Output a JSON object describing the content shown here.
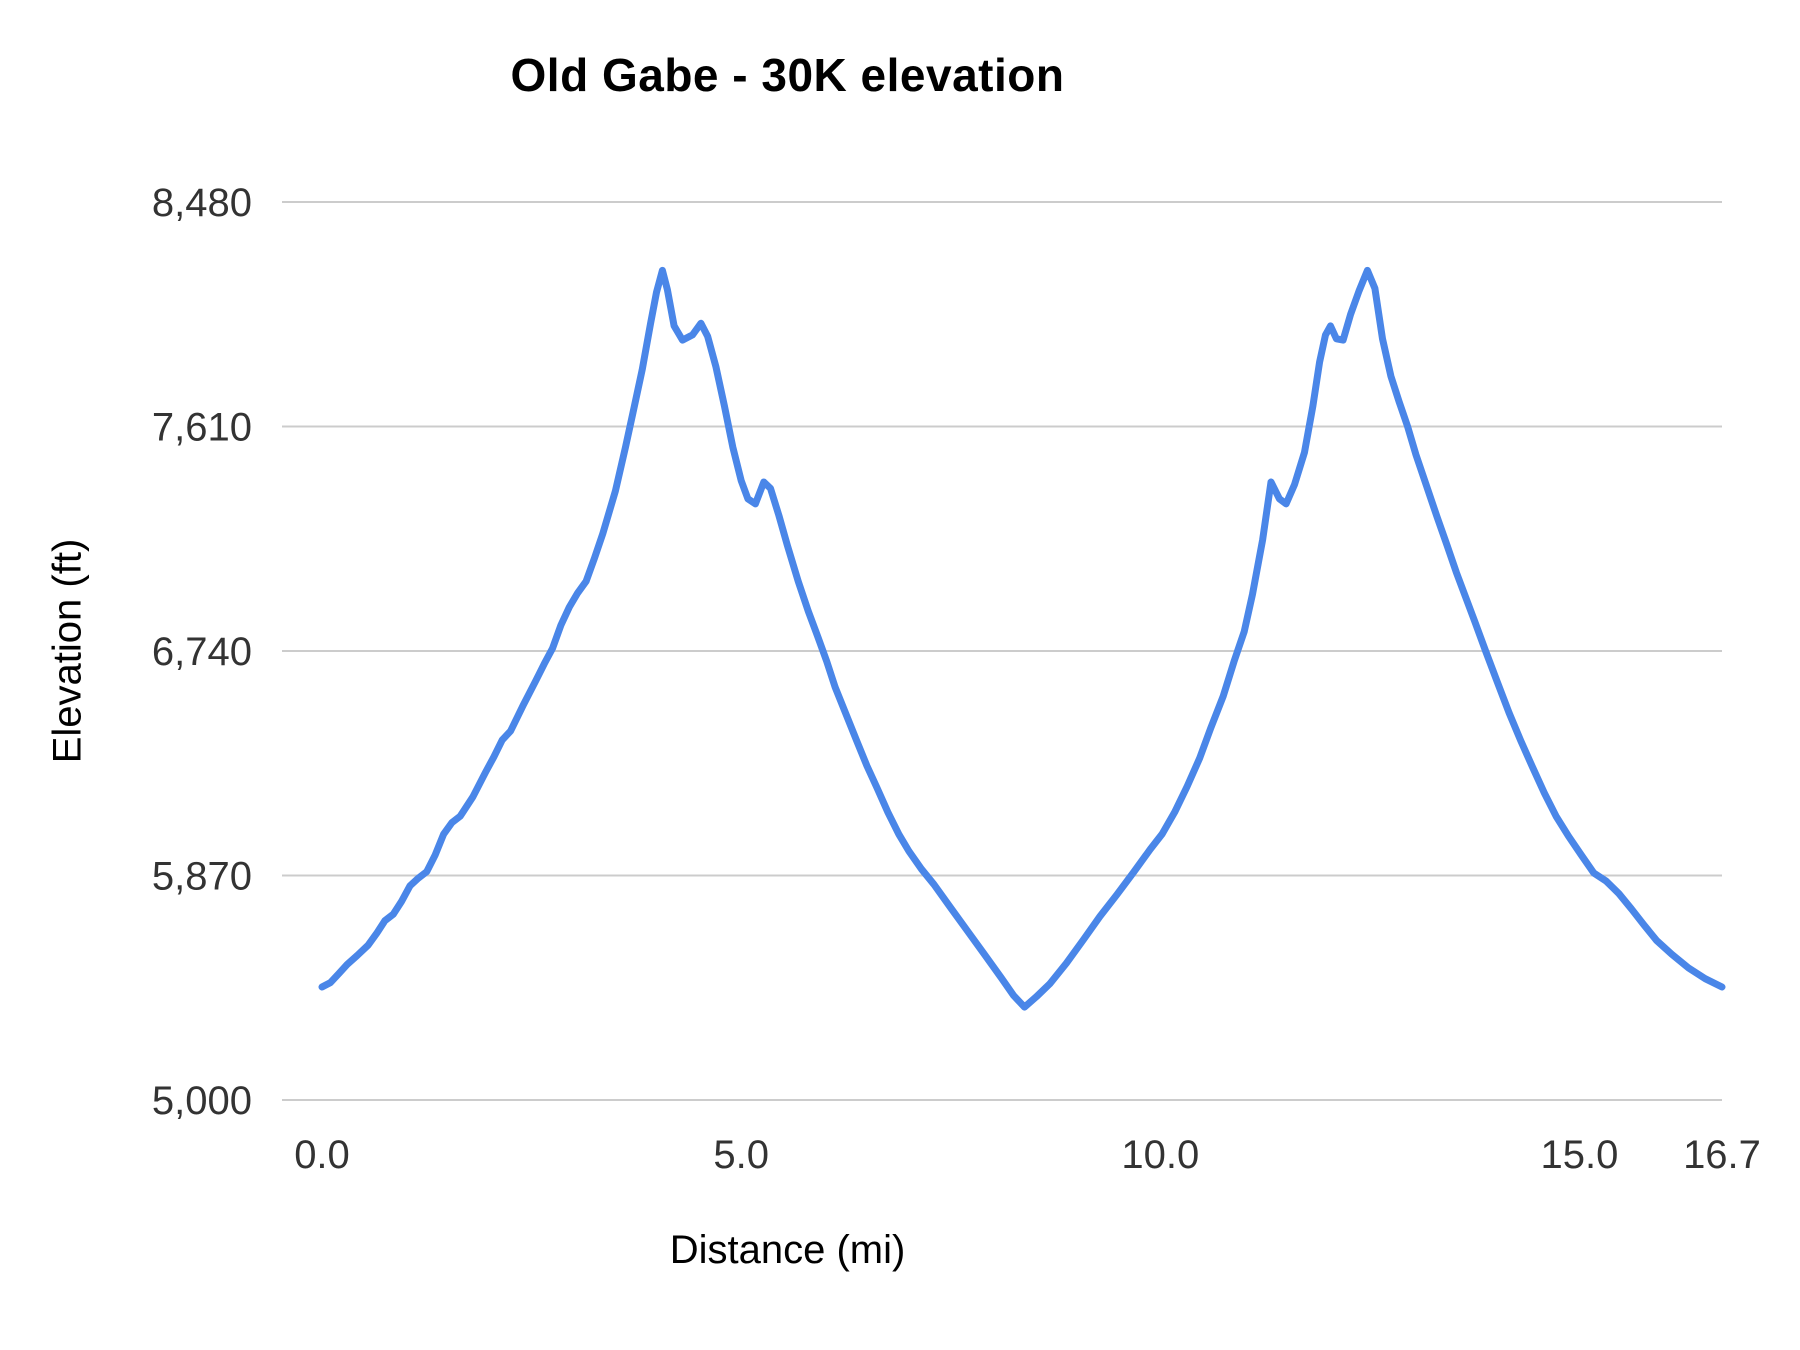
{
  "chart_data": {
    "type": "line",
    "title": "Old Gabe - 30K elevation",
    "xlabel": "Distance (mi)",
    "ylabel": "Elevation (ft)",
    "xlim": [
      0,
      16.7
    ],
    "ylim": [
      5000,
      8480
    ],
    "xticks": {
      "values": [
        0,
        5,
        10,
        15,
        16.7
      ],
      "labels": [
        "0.0",
        "5.0",
        "10.0",
        "15.0",
        "16.7"
      ]
    },
    "yticks": {
      "values": [
        5000,
        5870,
        6740,
        7610,
        8480
      ],
      "labels": [
        "5,000",
        "5,870",
        "6,740",
        "7,610",
        "8,480"
      ]
    },
    "grid_on": true,
    "legend": "none",
    "line_color": "#4a86e8",
    "grid_color": "#cccccc",
    "tick_label_color": "#333333",
    "line_width": 7,
    "points": [
      [
        0.0,
        5438
      ],
      [
        0.1,
        5455
      ],
      [
        0.2,
        5490
      ],
      [
        0.3,
        5525
      ],
      [
        0.42,
        5560
      ],
      [
        0.55,
        5600
      ],
      [
        0.65,
        5645
      ],
      [
        0.75,
        5695
      ],
      [
        0.85,
        5720
      ],
      [
        0.95,
        5770
      ],
      [
        1.05,
        5830
      ],
      [
        1.15,
        5860
      ],
      [
        1.25,
        5885
      ],
      [
        1.35,
        5950
      ],
      [
        1.45,
        6030
      ],
      [
        1.55,
        6075
      ],
      [
        1.65,
        6100
      ],
      [
        1.8,
        6175
      ],
      [
        1.95,
        6270
      ],
      [
        2.05,
        6330
      ],
      [
        2.15,
        6395
      ],
      [
        2.25,
        6430
      ],
      [
        2.4,
        6530
      ],
      [
        2.55,
        6625
      ],
      [
        2.65,
        6690
      ],
      [
        2.75,
        6750
      ],
      [
        2.85,
        6840
      ],
      [
        2.95,
        6910
      ],
      [
        3.05,
        6965
      ],
      [
        3.15,
        7010
      ],
      [
        3.25,
        7100
      ],
      [
        3.35,
        7195
      ],
      [
        3.5,
        7360
      ],
      [
        3.62,
        7530
      ],
      [
        3.72,
        7680
      ],
      [
        3.82,
        7830
      ],
      [
        3.92,
        8010
      ],
      [
        3.99,
        8130
      ],
      [
        4.06,
        8215
      ],
      [
        4.12,
        8140
      ],
      [
        4.2,
        8000
      ],
      [
        4.3,
        7945
      ],
      [
        4.42,
        7965
      ],
      [
        4.52,
        8010
      ],
      [
        4.6,
        7960
      ],
      [
        4.7,
        7840
      ],
      [
        4.8,
        7690
      ],
      [
        4.9,
        7530
      ],
      [
        5.0,
        7400
      ],
      [
        5.08,
        7330
      ],
      [
        5.17,
        7310
      ],
      [
        5.27,
        7395
      ],
      [
        5.35,
        7370
      ],
      [
        5.45,
        7265
      ],
      [
        5.55,
        7150
      ],
      [
        5.68,
        7010
      ],
      [
        5.8,
        6895
      ],
      [
        5.92,
        6790
      ],
      [
        6.02,
        6700
      ],
      [
        6.12,
        6600
      ],
      [
        6.25,
        6495
      ],
      [
        6.38,
        6390
      ],
      [
        6.5,
        6295
      ],
      [
        6.62,
        6210
      ],
      [
        6.75,
        6115
      ],
      [
        6.88,
        6030
      ],
      [
        7.0,
        5965
      ],
      [
        7.15,
        5895
      ],
      [
        7.3,
        5835
      ],
      [
        7.5,
        5745
      ],
      [
        7.7,
        5655
      ],
      [
        7.9,
        5565
      ],
      [
        8.1,
        5475
      ],
      [
        8.25,
        5405
      ],
      [
        8.38,
        5360
      ],
      [
        8.52,
        5400
      ],
      [
        8.68,
        5450
      ],
      [
        8.88,
        5530
      ],
      [
        9.08,
        5620
      ],
      [
        9.28,
        5712
      ],
      [
        9.48,
        5795
      ],
      [
        9.68,
        5882
      ],
      [
        9.88,
        5972
      ],
      [
        10.02,
        6030
      ],
      [
        10.17,
        6115
      ],
      [
        10.32,
        6215
      ],
      [
        10.47,
        6325
      ],
      [
        10.6,
        6440
      ],
      [
        10.75,
        6565
      ],
      [
        10.88,
        6700
      ],
      [
        11.0,
        6815
      ],
      [
        11.1,
        6960
      ],
      [
        11.22,
        7170
      ],
      [
        11.32,
        7395
      ],
      [
        11.42,
        7330
      ],
      [
        11.5,
        7310
      ],
      [
        11.6,
        7385
      ],
      [
        11.72,
        7510
      ],
      [
        11.82,
        7690
      ],
      [
        11.9,
        7860
      ],
      [
        11.97,
        7965
      ],
      [
        12.03,
        8000
      ],
      [
        12.1,
        7950
      ],
      [
        12.18,
        7945
      ],
      [
        12.27,
        8045
      ],
      [
        12.37,
        8135
      ],
      [
        12.47,
        8215
      ],
      [
        12.56,
        8145
      ],
      [
        12.65,
        7950
      ],
      [
        12.75,
        7805
      ],
      [
        12.85,
        7705
      ],
      [
        12.95,
        7610
      ],
      [
        13.05,
        7500
      ],
      [
        13.17,
        7385
      ],
      [
        13.3,
        7260
      ],
      [
        13.42,
        7150
      ],
      [
        13.53,
        7045
      ],
      [
        13.64,
        6950
      ],
      [
        13.75,
        6855
      ],
      [
        13.88,
        6740
      ],
      [
        14.02,
        6620
      ],
      [
        14.16,
        6500
      ],
      [
        14.3,
        6392
      ],
      [
        14.44,
        6290
      ],
      [
        14.58,
        6190
      ],
      [
        14.72,
        6100
      ],
      [
        14.87,
        6022
      ],
      [
        15.02,
        5950
      ],
      [
        15.17,
        5880
      ],
      [
        15.32,
        5848
      ],
      [
        15.47,
        5800
      ],
      [
        15.62,
        5740
      ],
      [
        15.77,
        5678
      ],
      [
        15.92,
        5618
      ],
      [
        16.1,
        5565
      ],
      [
        16.3,
        5512
      ],
      [
        16.5,
        5470
      ],
      [
        16.7,
        5438
      ]
    ]
  }
}
